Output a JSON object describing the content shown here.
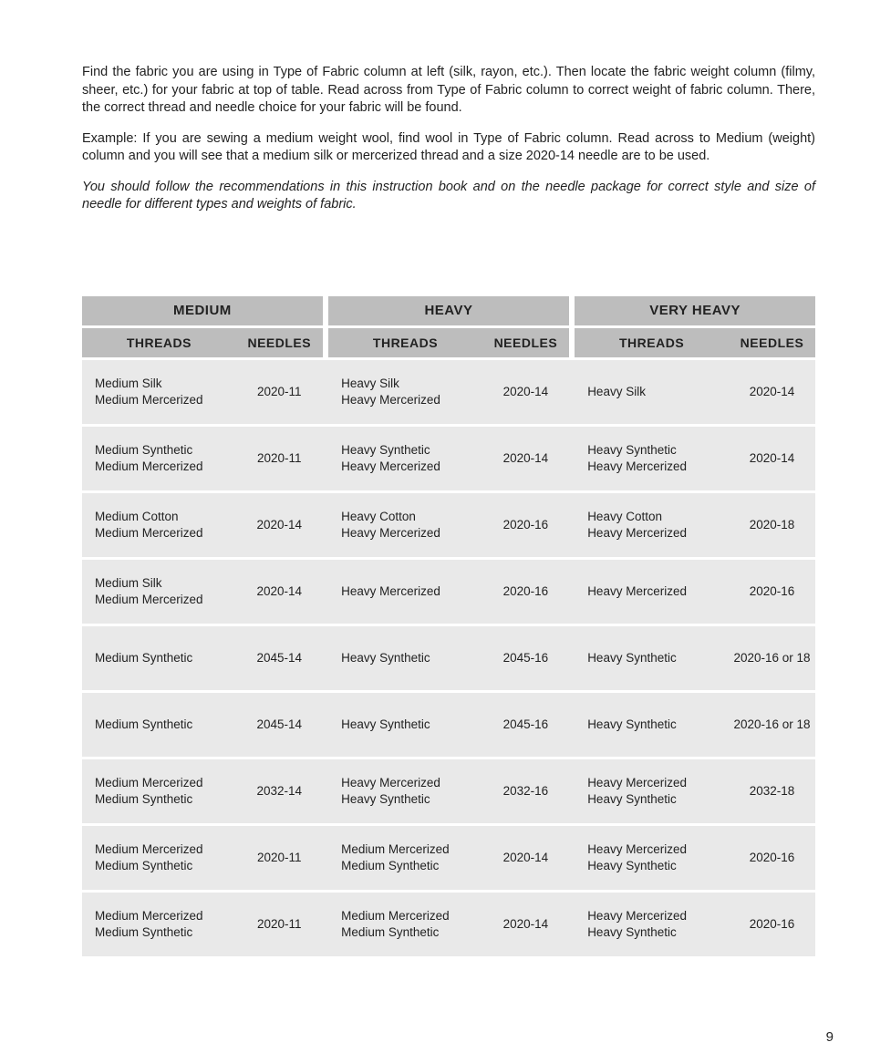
{
  "intro": {
    "p1": "Find the fabric you are using in Type of Fabric column at left (silk, rayon, etc.). Then locate the fabric weight column (filmy, sheer, etc.) for your fabric at top of table. Read across from Type of Fabric column to correct weight of fabric column. There, the correct thread and needle choice for your fabric will be found.",
    "p2": "Example: If you are sewing a medium weight wool, find wool in Type of Fabric column. Read across to Medium (weight) column and you will see that a medium silk or mercerized thread and a size 2020-14 needle are to be used.",
    "p3": "You should follow the recommendations in this instruction book and on the needle package for correct style and size of needle for different types and weights of fabric."
  },
  "table": {
    "weights": [
      "MEDIUM",
      "HEAVY",
      "VERY HEAVY"
    ],
    "subheads": [
      "THREADS",
      "NEEDLES"
    ],
    "col_widths": {
      "threads": 160,
      "needles": 90,
      "gap": 6
    },
    "colors": {
      "header_bg": "#bdbdbd",
      "row_bg": "#e9e9e9",
      "gap_bg": "#ffffff",
      "text": "#222222"
    },
    "rows": [
      {
        "medium": {
          "threads": [
            "Medium Silk",
            "Medium Mercerized"
          ],
          "needle": "2020-11"
        },
        "heavy": {
          "threads": [
            "Heavy Silk",
            "Heavy Mercerized"
          ],
          "needle": "2020-14"
        },
        "veryheavy": {
          "threads": [
            "Heavy Silk"
          ],
          "needle": "2020-14"
        }
      },
      {
        "medium": {
          "threads": [
            "Medium Synthetic",
            "Medium Mercerized"
          ],
          "needle": "2020-11"
        },
        "heavy": {
          "threads": [
            "Heavy Synthetic",
            "Heavy Mercerized"
          ],
          "needle": "2020-14"
        },
        "veryheavy": {
          "threads": [
            "Heavy Synthetic",
            "Heavy Mercerized"
          ],
          "needle": "2020-14"
        }
      },
      {
        "medium": {
          "threads": [
            "Medium Cotton",
            "Medium Mercerized"
          ],
          "needle": "2020-14"
        },
        "heavy": {
          "threads": [
            "Heavy Cotton",
            "Heavy Mercerized"
          ],
          "needle": "2020-16"
        },
        "veryheavy": {
          "threads": [
            "Heavy Cotton",
            "Heavy Mercerized"
          ],
          "needle": "2020-18"
        }
      },
      {
        "medium": {
          "threads": [
            "Medium Silk",
            "Medium Mercerized"
          ],
          "needle": "2020-14"
        },
        "heavy": {
          "threads": [
            "Heavy Mercerized"
          ],
          "needle": "2020-16"
        },
        "veryheavy": {
          "threads": [
            "Heavy Mercerized"
          ],
          "needle": "2020-16"
        }
      },
      {
        "medium": {
          "threads": [
            "Medium Synthetic"
          ],
          "needle": "2045-14"
        },
        "heavy": {
          "threads": [
            "Heavy Synthetic"
          ],
          "needle": "2045-16"
        },
        "veryheavy": {
          "threads": [
            "Heavy Synthetic"
          ],
          "needle": "2020-16 or 18"
        }
      },
      {
        "medium": {
          "threads": [
            "Medium Synthetic"
          ],
          "needle": "2045-14"
        },
        "heavy": {
          "threads": [
            "Heavy Synthetic"
          ],
          "needle": "2045-16"
        },
        "veryheavy": {
          "threads": [
            "Heavy Synthetic"
          ],
          "needle": "2020-16 or 18"
        }
      },
      {
        "medium": {
          "threads": [
            "Medium Mercerized",
            "Medium Synthetic"
          ],
          "needle": "2032-14"
        },
        "heavy": {
          "threads": [
            "Heavy Mercerized",
            "Heavy Synthetic"
          ],
          "needle": "2032-16"
        },
        "veryheavy": {
          "threads": [
            "Heavy Mercerized",
            "Heavy Synthetic"
          ],
          "needle": "2032-18"
        }
      },
      {
        "medium": {
          "threads": [
            "Medium Mercerized",
            "Medium Synthetic"
          ],
          "needle": "2020-11"
        },
        "heavy": {
          "threads": [
            "Medium Mercerized",
            "Medium Synthetic"
          ],
          "needle": "2020-14"
        },
        "veryheavy": {
          "threads": [
            "Heavy Mercerized",
            "Heavy Synthetic"
          ],
          "needle": "2020-16"
        }
      },
      {
        "medium": {
          "threads": [
            "Medium Mercerized",
            "Medium Synthetic"
          ],
          "needle": "2020-11"
        },
        "heavy": {
          "threads": [
            "Medium Mercerized",
            "Medium Synthetic"
          ],
          "needle": "2020-14"
        },
        "veryheavy": {
          "threads": [
            "Heavy Mercerized",
            "Heavy Synthetic"
          ],
          "needle": "2020-16"
        }
      }
    ]
  },
  "pagenum": "9"
}
